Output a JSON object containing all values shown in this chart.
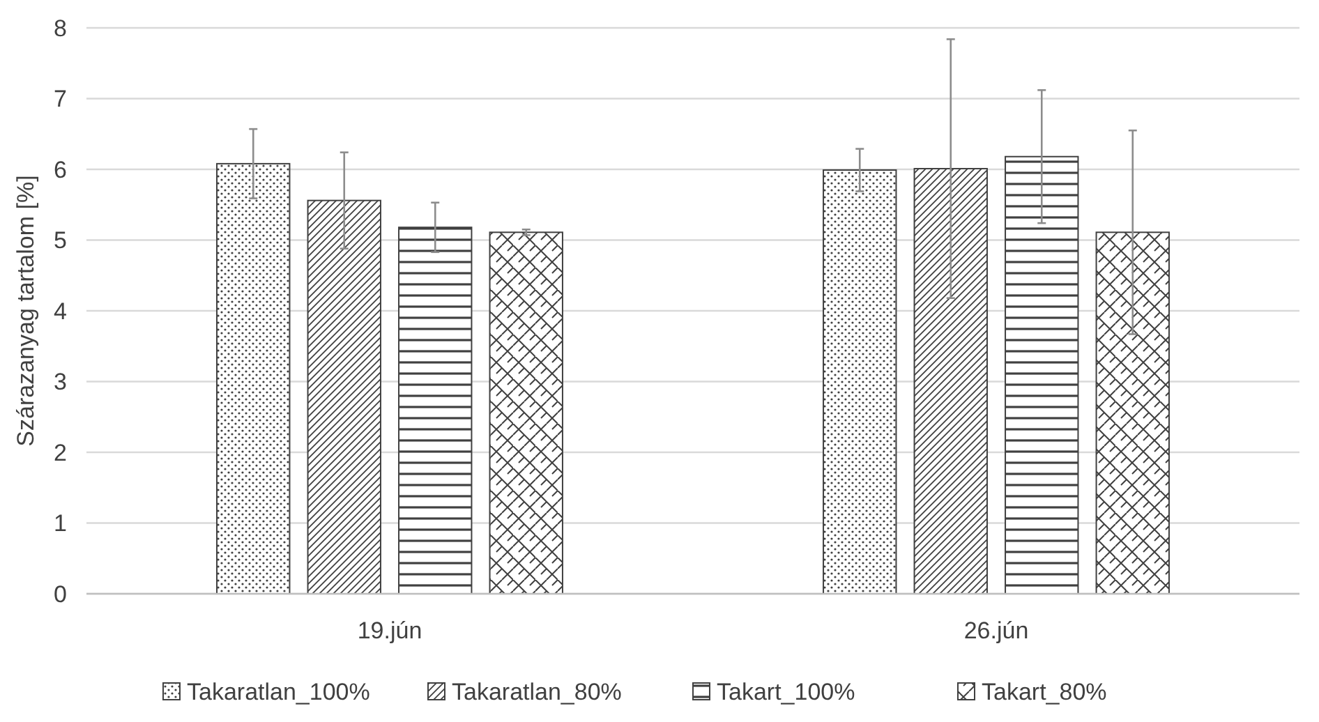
{
  "chart_data": {
    "type": "bar",
    "ylabel": "Szárazanyag tartalom [%]",
    "categories": [
      "19.jún",
      "26.jún"
    ],
    "series": [
      {
        "name": "Takaratlan_100%",
        "color": "#404040",
        "values": [
          6.08,
          5.99
        ],
        "errors": [
          0.49,
          0.3
        ]
      },
      {
        "name": "Takaratlan_80%",
        "color": "#404040",
        "values": [
          5.56,
          6.01
        ],
        "errors": [
          0.68,
          1.83
        ]
      },
      {
        "name": "Takart_100%",
        "color": "#404040",
        "values": [
          5.18,
          6.18
        ],
        "errors": [
          0.35,
          0.94
        ]
      },
      {
        "name": "Takart_80%",
        "color": "#404040",
        "values": [
          5.11,
          5.11
        ],
        "errors": [
          0.04,
          1.44
        ]
      }
    ],
    "ylim": [
      0,
      8
    ],
    "yticks": [
      0,
      1,
      2,
      3,
      4,
      5,
      6,
      7,
      8
    ],
    "grid": "y",
    "legend": "bottom"
  }
}
